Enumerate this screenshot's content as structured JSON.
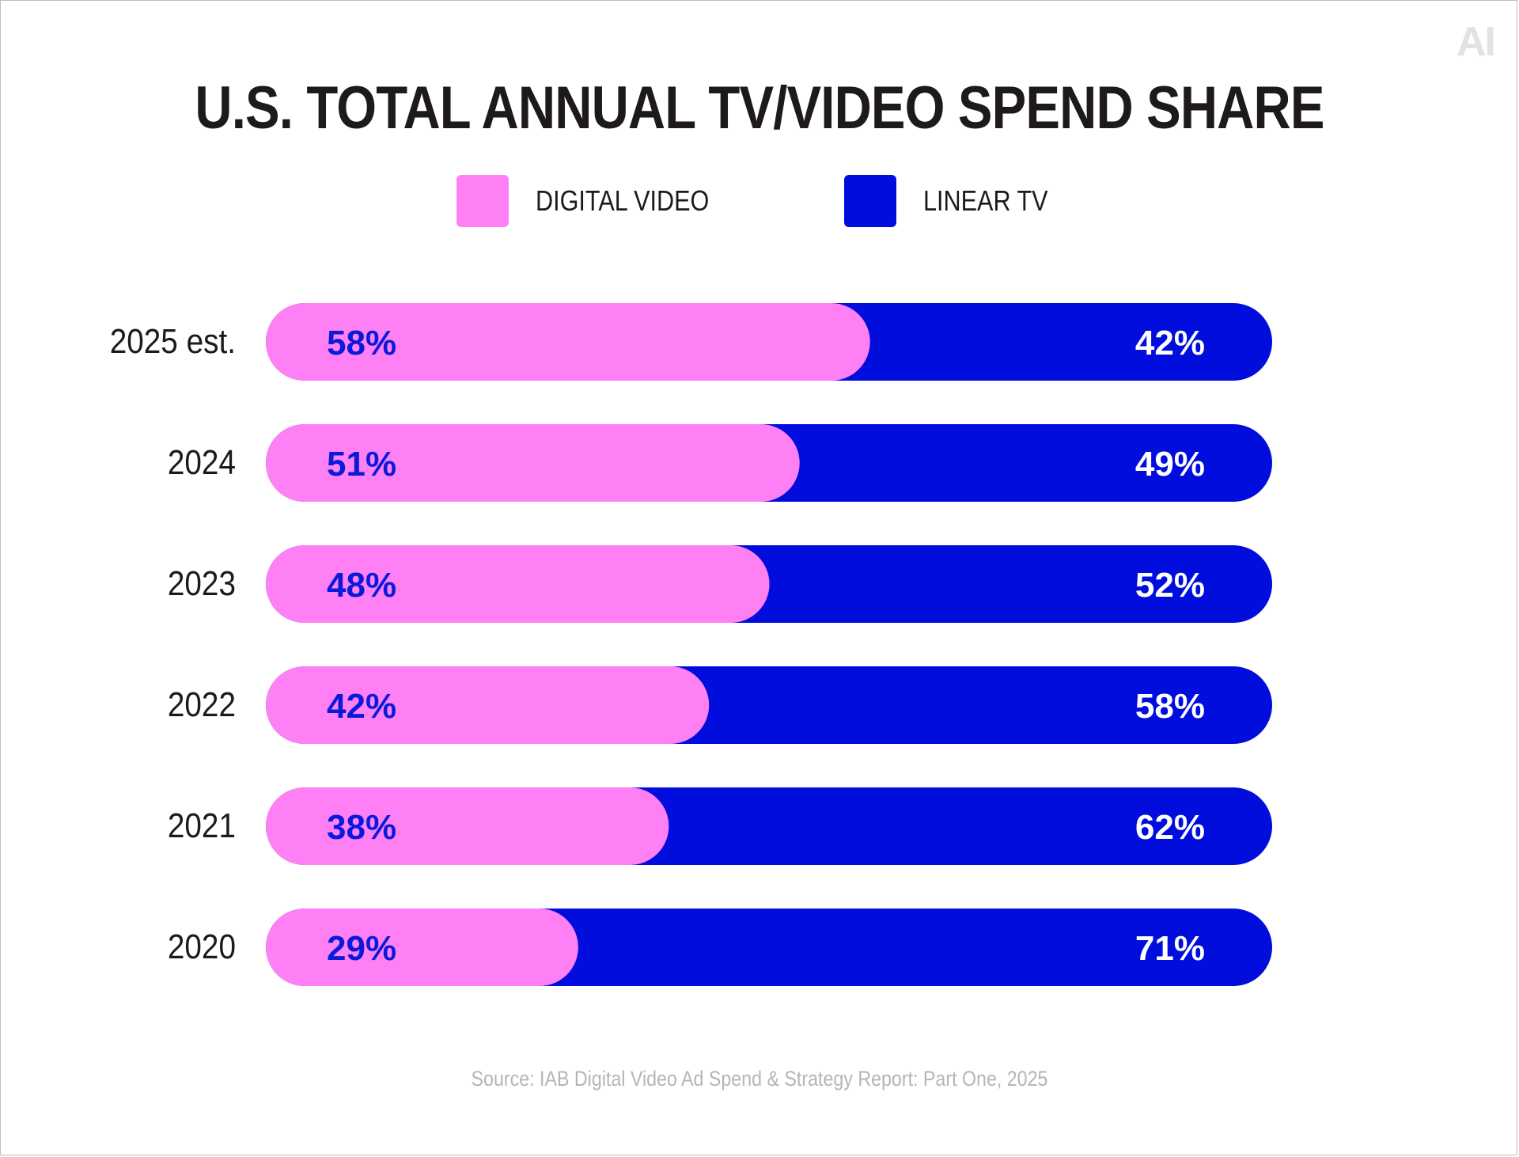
{
  "logo_text": "AI",
  "chart_data": {
    "type": "bar",
    "orientation": "horizontal",
    "stacked": true,
    "title": "U.S. TOTAL ANNUAL TV/VIDEO SPEND SHARE",
    "categories": [
      "2025 est.",
      "2024",
      "2023",
      "2022",
      "2021",
      "2020"
    ],
    "series": [
      {
        "name": "DIGITAL VIDEO",
        "color": "#ff80f5",
        "label_color": "#0a1adb",
        "values": [
          58,
          51,
          48,
          42,
          38,
          29
        ],
        "labels": [
          "58%",
          "51%",
          "48%",
          "42%",
          "38%",
          "29%"
        ]
      },
      {
        "name": "LINEAR TV",
        "color": "#000ddd",
        "label_color": "#ffffff",
        "values": [
          42,
          49,
          52,
          58,
          62,
          71
        ],
        "labels": [
          "42%",
          "49%",
          "52%",
          "58%",
          "62%",
          "71%"
        ]
      }
    ],
    "xlim": [
      0,
      100
    ],
    "grid": false,
    "legend_position": "top-center",
    "source": "Source: IAB Digital Video Ad Spend & Strategy Report: Part One, 2025"
  }
}
